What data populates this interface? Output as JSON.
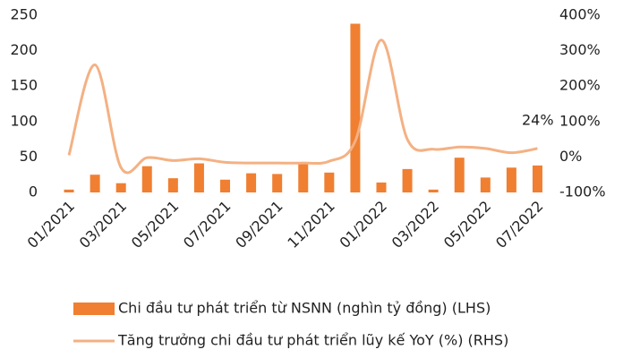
{
  "chart_data": {
    "type": "bar-line",
    "categories": [
      "01/2021",
      null,
      "03/2021",
      null,
      "05/2021",
      null,
      "07/2021",
      null,
      "09/2021",
      null,
      "11/2021",
      null,
      "01/2022",
      null,
      "03/2022",
      null,
      "05/2022",
      null,
      "07/2022"
    ],
    "series": [
      {
        "name": "Chi đầu tư phát triển từ NSNN (nghìn tỷ đồng) (LHS)",
        "type": "bar",
        "color": "#f07f31",
        "values": [
          4,
          25,
          13,
          37,
          20,
          41,
          18,
          27,
          26,
          41,
          28,
          238,
          14,
          33,
          4,
          49,
          21,
          35,
          38
        ]
      },
      {
        "name": "Tăng trưởng chi đầu tư phát triển lũy kế YoY (%) (RHS)",
        "type": "line",
        "axis": "y2",
        "color": "#f4b183",
        "values": [
          5,
          260,
          -30,
          -2,
          -10,
          -5,
          -15,
          -17,
          -17,
          -17,
          -12,
          45,
          330,
          50,
          22,
          28,
          24,
          12,
          24
        ]
      }
    ],
    "annotation": "24%",
    "ylim": [
      0,
      250
    ],
    "yticks": [
      0,
      50,
      100,
      150,
      200,
      250
    ],
    "y2lim": [
      -100,
      400
    ],
    "y2ticks": [
      {
        "value": -100,
        "label": "-100%"
      },
      {
        "value": 0,
        "label": "0%"
      },
      {
        "value": 100,
        "label": "100%"
      },
      {
        "value": 200,
        "label": "200%"
      },
      {
        "value": 300,
        "label": "300%"
      },
      {
        "value": 400,
        "label": "400%"
      }
    ],
    "grid": false
  }
}
